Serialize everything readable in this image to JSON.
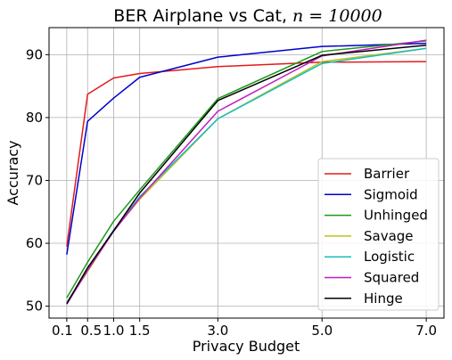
{
  "chart_data": {
    "type": "line",
    "title_main": "BER Airplane vs Cat, ",
    "title_math": "n = 10000",
    "xlabel": "Privacy Budget",
    "ylabel": "Accuracy",
    "x": [
      0.1,
      0.5,
      1.0,
      1.5,
      3.0,
      5.0,
      7.0
    ],
    "x_tick_labels": [
      "0.1",
      "0.5",
      "1.0",
      "1.5",
      "3.0",
      "5.0",
      "7.0"
    ],
    "y_ticks": [
      50,
      60,
      70,
      80,
      90
    ],
    "xlim": [
      -0.24,
      7.34
    ],
    "ylim": [
      48.1,
      94.3
    ],
    "grid": true,
    "legend_position": "lower-right",
    "series": [
      {
        "name": "Barrier",
        "color": "#e41a1c",
        "values": [
          59.5,
          83.7,
          86.3,
          87.0,
          88.1,
          88.8,
          88.9
        ]
      },
      {
        "name": "Sigmoid",
        "color": "#0000cc",
        "values": [
          58.2,
          79.4,
          83.1,
          86.4,
          89.6,
          91.3,
          91.8
        ]
      },
      {
        "name": "Unhinged",
        "color": "#1a9a1a",
        "values": [
          51.3,
          57.0,
          63.5,
          68.5,
          83.0,
          90.5,
          92.2
        ]
      },
      {
        "name": "Savage",
        "color": "#bfbf1f",
        "values": [
          50.6,
          55.5,
          62.0,
          67.0,
          79.8,
          88.9,
          91.0
        ]
      },
      {
        "name": "Logistic",
        "color": "#18bfbf",
        "values": [
          50.5,
          55.8,
          62.1,
          67.4,
          79.8,
          88.6,
          91.0
        ]
      },
      {
        "name": "Squared",
        "color": "#c01fc0",
        "values": [
          50.3,
          55.7,
          61.9,
          67.2,
          81.0,
          89.8,
          92.3
        ]
      },
      {
        "name": "Hinge",
        "color": "#000000",
        "values": [
          50.4,
          56.1,
          62.0,
          68.0,
          82.7,
          89.9,
          91.5
        ]
      }
    ]
  }
}
